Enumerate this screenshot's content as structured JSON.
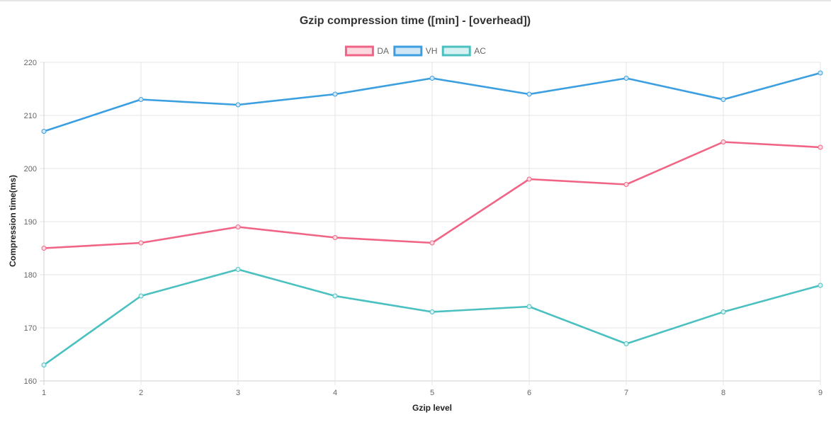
{
  "chart_data": {
    "type": "line",
    "title": "Gzip compression time ([min] - [overhead])",
    "xlabel": "Gzip level",
    "ylabel": "Compression time(ms)",
    "x": [
      1,
      2,
      3,
      4,
      5,
      6,
      7,
      8,
      9
    ],
    "ylim": [
      160,
      220
    ],
    "yticks": [
      160,
      170,
      180,
      190,
      200,
      210,
      220
    ],
    "grid": true,
    "legend_position": "top-center",
    "series": [
      {
        "name": "DA",
        "color": "#f06585",
        "fill": "#fcd9e1",
        "values": [
          185,
          186,
          189,
          187,
          186,
          198,
          197,
          205,
          204
        ]
      },
      {
        "name": "VH",
        "color": "#3b9fe0",
        "fill": "#cfe6f7",
        "values": [
          207,
          213,
          212,
          214,
          217,
          214,
          217,
          213,
          218
        ]
      },
      {
        "name": "AC",
        "color": "#4bc0c0",
        "fill": "#d6f1f1",
        "values": [
          163,
          176,
          181,
          176,
          173,
          174,
          167,
          173,
          178
        ]
      }
    ]
  }
}
